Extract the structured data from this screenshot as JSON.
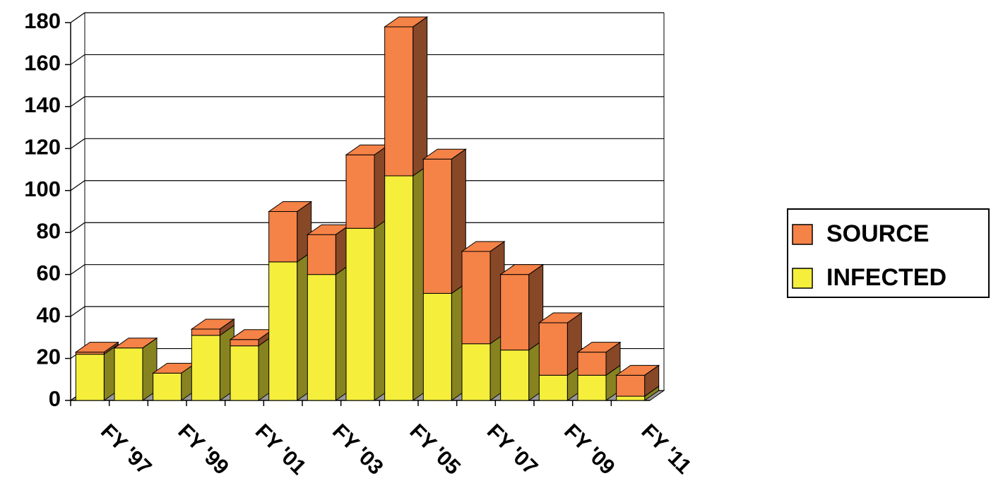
{
  "chart_data": {
    "type": "bar3d_stacked",
    "categories": [
      "FY '97",
      null,
      "FY '99",
      null,
      "FY '01",
      null,
      "FY '03",
      null,
      "FY '05",
      null,
      "FY '07",
      null,
      "FY '09",
      null,
      "FY '11"
    ],
    "series": [
      {
        "name": "INFECTED",
        "color": "#f5ef3c",
        "values": [
          22,
          25,
          13,
          31,
          26,
          66,
          60,
          82,
          107,
          51,
          27,
          24,
          12,
          12,
          2
        ]
      },
      {
        "name": "SOURCE",
        "color": "#f58246",
        "values": [
          1,
          0,
          0,
          3,
          3,
          24,
          19,
          35,
          71,
          64,
          44,
          36,
          25,
          11,
          10
        ]
      }
    ],
    "ylim": [
      0,
      180
    ],
    "yticks": [
      0,
      20,
      40,
      60,
      80,
      100,
      120,
      140,
      160,
      180
    ],
    "grid": true,
    "legend": "right"
  }
}
